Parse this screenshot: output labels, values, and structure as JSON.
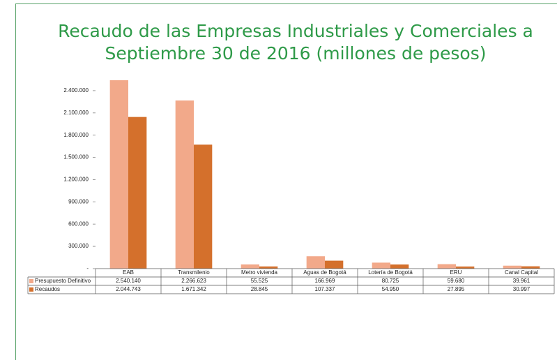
{
  "chart_data": {
    "type": "bar",
    "title": [
      "Recaudo de las Empresas Industriales y Comerciales a",
      "Septiembre 30 de 2016 (millones de pesos)"
    ],
    "categories": [
      "EAB",
      "Transmilenio",
      "Metro vivienda",
      "Aguas de Bogotá",
      "Lotería de Bogotá",
      "ERU",
      "Canal Capital"
    ],
    "series": [
      {
        "name": "Presupuesto Definitivo",
        "color": "#f2a98a",
        "values": [
          2540140,
          2266623,
          55525,
          166969,
          80725,
          59680,
          39961
        ],
        "value_labels": [
          "2.540.140",
          "2.266.623",
          "55.525",
          "166.969",
          "80.725",
          "59.680",
          "39.961"
        ]
      },
      {
        "name": "Recaudos",
        "color": "#d4702c",
        "values": [
          2044743,
          1671342,
          28845,
          107337,
          54950,
          27895,
          30997
        ],
        "value_labels": [
          "2.044.743",
          "1.671.342",
          "28.845",
          "107.337",
          "54.950",
          "27.895",
          "30.997"
        ]
      }
    ],
    "ylim": [
      0,
      2700000
    ],
    "yticks": [
      {
        "value": 0,
        "label": "-"
      },
      {
        "value": 300000,
        "label": "300.000"
      },
      {
        "value": 600000,
        "label": "600.000"
      },
      {
        "value": 900000,
        "label": "900.000"
      },
      {
        "value": 1200000,
        "label": "1.200.000"
      },
      {
        "value": 1500000,
        "label": "1.500.000"
      },
      {
        "value": 1800000,
        "label": "1.800.000"
      },
      {
        "value": 2100000,
        "label": "2.100.000"
      },
      {
        "value": 2400000,
        "label": "2.400.000"
      }
    ],
    "grid": false
  }
}
